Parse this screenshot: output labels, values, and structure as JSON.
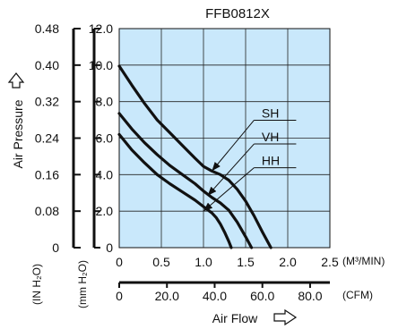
{
  "chart_data": {
    "type": "line",
    "title": "FFB0812X",
    "xlabel": "Air Flow",
    "ylabel": "Air Pressure",
    "x_unit_primary": "(M³/MIN)",
    "x_unit_secondary": "(CFM)",
    "y_unit_left": "(IN H₂O)",
    "y_unit_inner": "(mm H₂O)",
    "xlim": [
      0,
      2.5
    ],
    "ylim": [
      0,
      12
    ],
    "x_ticks_primary": [
      "0",
      "0.5",
      "1.0",
      "1.5",
      "2.0",
      "2.5"
    ],
    "x_ticks_secondary": [
      "0",
      "20.0",
      "40.0",
      "60.0",
      "80.0"
    ],
    "x_ticks_secondary_values": [
      0,
      20,
      40,
      60,
      80
    ],
    "cfm_per_m3min": 35.3147,
    "y_ticks_inner": [
      "0",
      "2.0",
      "4.0",
      "6.0",
      "8.0",
      "10.0",
      "12.0"
    ],
    "y_ticks_left": [
      "0",
      "0.08",
      "0.16",
      "0.24",
      "0.32",
      "0.40",
      "0.48"
    ],
    "grid": true,
    "plot_color": "#c9e8fb",
    "series": [
      {
        "name": "SH",
        "label_value": [
          1.69,
          6.98
        ],
        "points": [
          [
            0,
            9.95
          ],
          [
            0.15,
            8.9
          ],
          [
            0.3,
            7.9
          ],
          [
            0.45,
            7.0
          ],
          [
            0.6,
            6.3
          ],
          [
            0.75,
            5.6
          ],
          [
            0.9,
            4.9
          ],
          [
            1.0,
            4.45
          ],
          [
            1.1,
            4.2
          ],
          [
            1.2,
            4.0
          ],
          [
            1.3,
            3.7
          ],
          [
            1.4,
            3.2
          ],
          [
            1.5,
            2.55
          ],
          [
            1.6,
            1.75
          ],
          [
            1.7,
            0.85
          ],
          [
            1.8,
            0
          ]
        ]
      },
      {
        "name": "VH",
        "label_value": [
          1.69,
          5.68
        ],
        "points": [
          [
            0,
            7.35
          ],
          [
            0.15,
            6.5
          ],
          [
            0.3,
            5.75
          ],
          [
            0.45,
            5.1
          ],
          [
            0.6,
            4.5
          ],
          [
            0.75,
            4.0
          ],
          [
            0.9,
            3.5
          ],
          [
            1.0,
            3.1
          ],
          [
            1.1,
            2.75
          ],
          [
            1.2,
            2.45
          ],
          [
            1.3,
            2.05
          ],
          [
            1.4,
            1.4
          ],
          [
            1.5,
            0.6
          ],
          [
            1.57,
            0
          ]
        ]
      },
      {
        "name": "HH",
        "label_value": [
          1.69,
          4.38
        ],
        "points": [
          [
            0,
            6.2
          ],
          [
            0.15,
            5.35
          ],
          [
            0.3,
            4.65
          ],
          [
            0.45,
            4.0
          ],
          [
            0.6,
            3.5
          ],
          [
            0.75,
            3.05
          ],
          [
            0.9,
            2.6
          ],
          [
            1.0,
            2.25
          ],
          [
            1.1,
            1.9
          ],
          [
            1.15,
            1.65
          ],
          [
            1.2,
            1.3
          ],
          [
            1.25,
            0.85
          ],
          [
            1.3,
            0.35
          ],
          [
            1.33,
            0
          ]
        ]
      }
    ],
    "leaders": [
      {
        "from": [
          1.6,
          6.98
        ],
        "to": [
          1.1,
          4.2
        ]
      },
      {
        "from": [
          1.6,
          5.68
        ],
        "to": [
          1.05,
          2.85
        ]
      },
      {
        "from": [
          1.6,
          4.38
        ],
        "to": [
          1.0,
          2.0
        ]
      }
    ]
  }
}
